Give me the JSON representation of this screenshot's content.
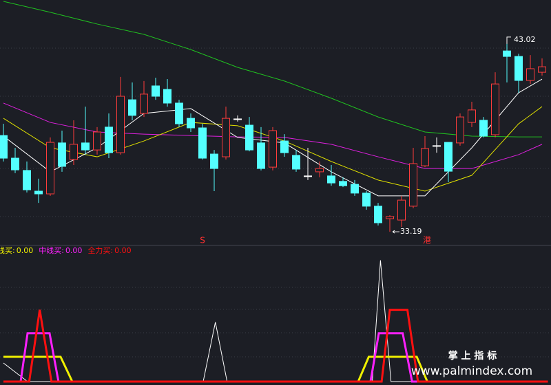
{
  "chart_data": [
    {
      "type": "candlestick",
      "ylim": [
        32.56,
        45.06
      ],
      "open": [
        38.12,
        36.96,
        36.33,
        35.27,
        35.13,
        37.74,
        36.89,
        37.74,
        37.38,
        38.55,
        37.24,
        39.95,
        39.25,
        40.66,
        40.48,
        39.78,
        39.0,
        38.51,
        37.17,
        37.03,
        38.97,
        38.65,
        37.74,
        36.5,
        37.84,
        37.1,
        36.05,
        36.26,
        36.05,
        35.77,
        35.62,
        35.17,
        34.5,
        33.86,
        33.79,
        34.5,
        36.57,
        37.6,
        37.77,
        37.74,
        38.79,
        38.9,
        38.16,
        42.45,
        42.17,
        40.94,
        41.36
      ],
      "high": [
        38.72,
        37.49,
        36.79,
        35.91,
        38.02,
        38.37,
        38.9,
        39.6,
        38.55,
        39.25,
        41.12,
        40.84,
        40.91,
        41.08,
        41.01,
        39.95,
        39.25,
        38.72,
        37.38,
        39.6,
        39.15,
        39.07,
        38.55,
        38.55,
        38.19,
        37.38,
        37.49,
        36.79,
        36.61,
        35.98,
        35.84,
        35.27,
        34.67,
        34.04,
        35.03,
        37.49,
        38.09,
        38.02,
        37.77,
        39.25,
        39.85,
        39.07,
        41.36,
        43.02,
        42.31,
        42.24,
        42.07
      ],
      "low": [
        36.79,
        36.19,
        35.2,
        34.67,
        35.03,
        36.26,
        36.61,
        37.14,
        37.14,
        36.96,
        37.14,
        38.9,
        39.07,
        39.95,
        39.6,
        38.55,
        38.3,
        36.89,
        35.27,
        36.89,
        38.83,
        37.31,
        36.33,
        36.33,
        37.03,
        36.26,
        35.84,
        35.98,
        35.55,
        35.48,
        35.03,
        34.32,
        33.51,
        33.19,
        33.44,
        34.39,
        36.5,
        37.24,
        35.73,
        37.6,
        38.55,
        38.02,
        38.02,
        40.84,
        40.31,
        40.76,
        41.19
      ],
      "close": [
        36.96,
        36.36,
        35.34,
        35.13,
        37.77,
        36.54,
        37.67,
        37.38,
        38.3,
        37.24,
        40.13,
        39.15,
        40.24,
        40.13,
        39.78,
        38.72,
        38.51,
        36.96,
        36.43,
        39.0,
        38.97,
        37.38,
        36.43,
        38.37,
        37.24,
        36.4,
        36.05,
        36.43,
        35.69,
        35.55,
        35.17,
        34.5,
        33.65,
        33.97,
        34.81,
        36.68,
        37.45,
        37.6,
        36.29,
        39.07,
        39.43,
        38.09,
        40.76,
        42.17,
        40.94,
        41.54,
        41.64
      ],
      "up_color": "#ff3c3c",
      "down_color": "#54ffff",
      "doji_color": "#ffffff",
      "lines": [
        {
          "color": "#20c020",
          "x": [
            0,
            4,
            8,
            12,
            16,
            20,
            24,
            28,
            32,
            36,
            40,
            44,
            46
          ],
          "values": [
            44.99,
            44.43,
            43.83,
            43.3,
            42.52,
            41.61,
            40.91,
            40.03,
            39.07,
            38.3,
            38.09,
            38.05,
            38.05
          ]
        },
        {
          "color": "#e020e0",
          "x": [
            0,
            4,
            8,
            12,
            16,
            20,
            24,
            28,
            32,
            36,
            40,
            44,
            46
          ],
          "values": [
            39.78,
            38.79,
            38.3,
            38.19,
            38.12,
            38.05,
            38.02,
            37.67,
            37.03,
            36.43,
            36.43,
            37.14,
            37.67
          ]
        },
        {
          "color": "#e0e000",
          "x": [
            0,
            4,
            8,
            12,
            16,
            20,
            24,
            28,
            32,
            36,
            40,
            44,
            46
          ],
          "values": [
            39.0,
            37.49,
            37.03,
            37.84,
            38.79,
            38.62,
            37.84,
            36.79,
            35.84,
            35.27,
            36.08,
            38.72,
            39.6
          ]
        },
        {
          "color": "#ffffff",
          "x": [
            0,
            4,
            8,
            12,
            16,
            20,
            24,
            28,
            32,
            36,
            40,
            44,
            46
          ],
          "values": [
            38.09,
            36.26,
            37.49,
            39.25,
            39.5,
            38.02,
            37.74,
            36.26,
            35.03,
            35.03,
            37.49,
            40.31,
            41.01
          ]
        }
      ],
      "annotations": [
        "S",
        "港"
      ]
    },
    {
      "type": "line",
      "ylim": [
        0,
        100
      ],
      "series": [
        {
          "color": "#ffffff",
          "x": [
            0,
            2.06,
            17.06,
            18.1,
            19.1,
            31.5,
            32.2,
            33.1,
            46.5
          ],
          "values": [
            15,
            0,
            0,
            48,
            0,
            0,
            98,
            0,
            0
          ]
        },
        {
          "name": "线买:",
          "value_label": "0.00",
          "color": "#f0f000",
          "x": [
            0,
            4.88,
            5.88,
            30.3,
            31.2,
            35.3,
            36.2,
            46.5
          ],
          "values": [
            20,
            20,
            0,
            0,
            20,
            20,
            0,
            0
          ]
        },
        {
          "name": "中线买:",
          "value_label": "0.00",
          "color": "#ff20ff",
          "x": [
            0,
            1.47,
            2.06,
            3.94,
            4.7,
            31.35,
            32.06,
            34.1,
            34.9,
            46.5
          ],
          "values": [
            0,
            0,
            39,
            39,
            0,
            0,
            39,
            39,
            0,
            0
          ]
        },
        {
          "name": "全力买:",
          "value_label": "0.00",
          "color": "#ff1010",
          "x": [
            0,
            2.2,
            3.1,
            4.1,
            32.3,
            33,
            34.5,
            35.4,
            46.5
          ],
          "values": [
            0,
            0,
            58,
            0,
            0,
            58,
            58,
            0,
            0
          ]
        }
      ]
    }
  ],
  "watermark": {
    "title": "掌 上 指 标",
    "url": "www.palmindex.com"
  }
}
